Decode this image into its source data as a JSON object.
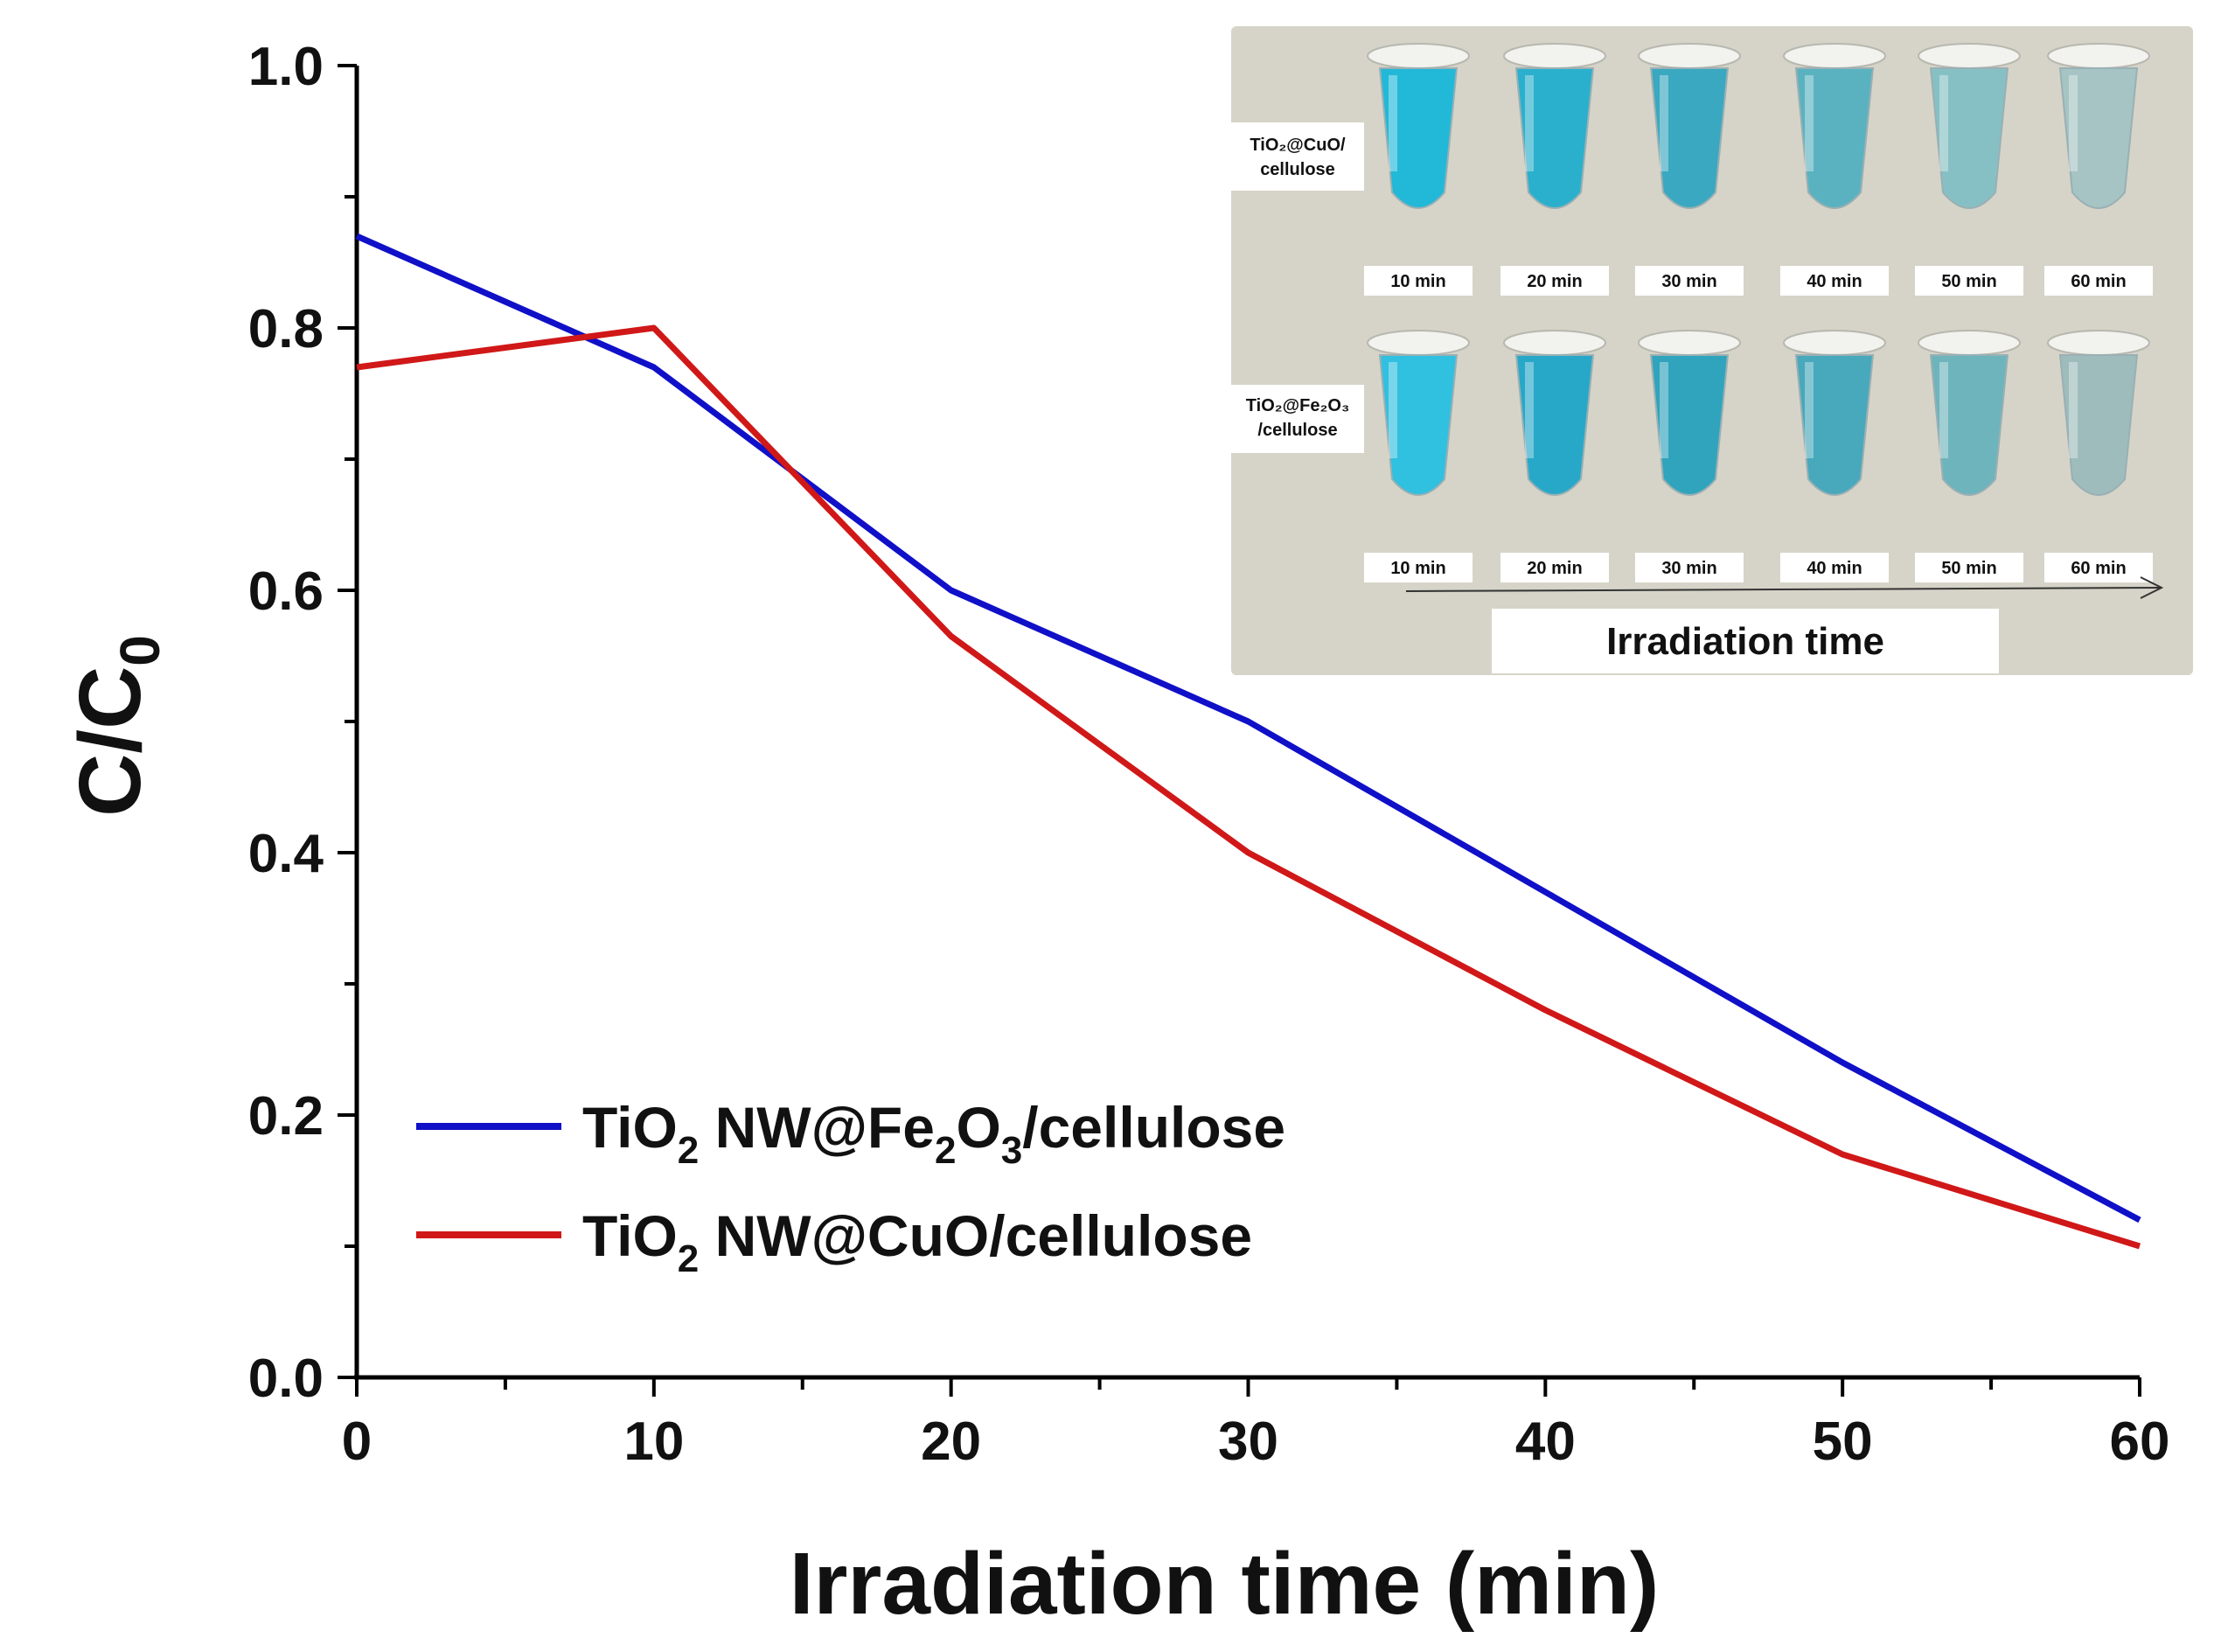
{
  "chart_data": {
    "type": "line",
    "title": "",
    "xlabel": "Irradiation time (min)",
    "ylabel_main": "C/C",
    "ylabel_sub": "0",
    "xlim": [
      0,
      60
    ],
    "ylim": [
      0,
      1.0
    ],
    "x_ticks": [
      0,
      10,
      20,
      30,
      40,
      50,
      60
    ],
    "x_tick_labels": [
      "0",
      "10",
      "20",
      "30",
      "40",
      "50",
      "60"
    ],
    "y_ticks": [
      0,
      0.2,
      0.4,
      0.6,
      0.8,
      1.0
    ],
    "y_tick_labels": [
      "0.0",
      "0.2",
      "0.4",
      "0.6",
      "0.8",
      "1.0"
    ],
    "x_minor_step": 5,
    "y_minor_step": 0.1,
    "grid": false,
    "legend_position": "lower-left",
    "series": [
      {
        "name": "TiO2 NW@Fe2O3/cellulose",
        "legend_parts": [
          "TiO",
          "2",
          " NW@Fe",
          "2",
          "O",
          "3",
          "/cellulose"
        ],
        "color": "#1010c8",
        "x": [
          0,
          10,
          20,
          30,
          40,
          50,
          60
        ],
        "y": [
          0.87,
          0.77,
          0.6,
          0.5,
          0.37,
          0.24,
          0.12
        ]
      },
      {
        "name": "TiO2 NW@CuO/cellulose",
        "legend_parts": [
          "TiO",
          "2",
          " NW@CuO/cellulose"
        ],
        "color": "#d01818",
        "x": [
          0,
          10,
          20,
          30,
          40,
          50,
          60
        ],
        "y": [
          0.77,
          0.8,
          0.565,
          0.4,
          0.28,
          0.17,
          0.1
        ]
      }
    ]
  },
  "inset": {
    "title": "Irradiation time",
    "row1_label": [
      "TiO₂@CuO/",
      "cellulose"
    ],
    "row2_label": [
      "TiO₂@Fe₂O₃",
      "/cellulose"
    ],
    "times": [
      "10 min",
      "20 min",
      "30 min",
      "40 min",
      "50 min",
      "60 min"
    ],
    "row1_colors": [
      "#22b8d8",
      "#2ab0cc",
      "#3aa8c0",
      "#5ab2c0",
      "#86c0c4",
      "#a6c4c4"
    ],
    "row2_colors": [
      "#30c0e0",
      "#28a8c8",
      "#30a4bc",
      "#48a8bc",
      "#6eb4bc",
      "#9ebcbc"
    ],
    "background": "#d6d4c8"
  }
}
